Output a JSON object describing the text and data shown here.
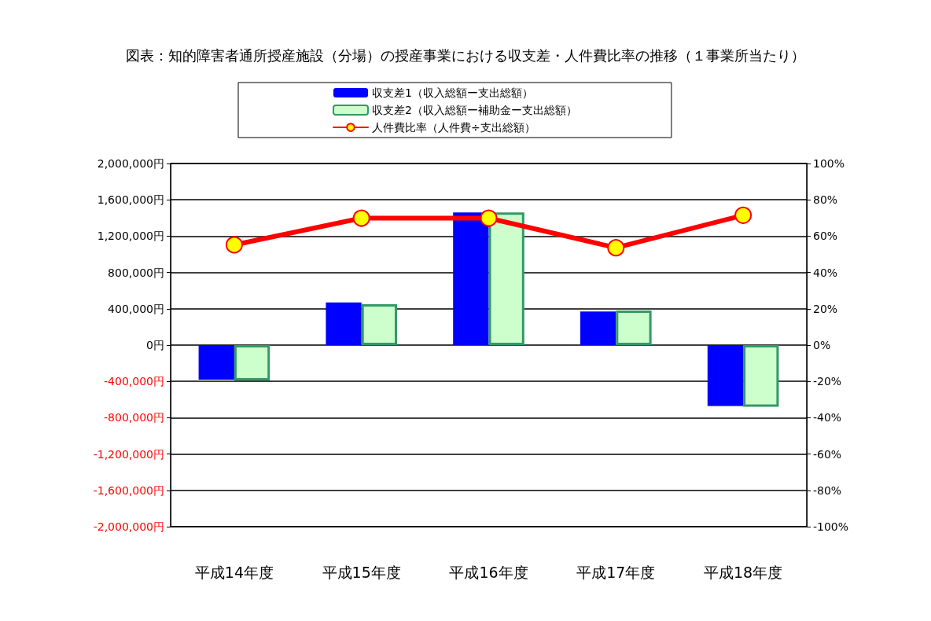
{
  "chart_data": {
    "type": "bar",
    "title": "図表：知的障害者通所授産施設（分場）の授産事業における収支差・人件費比率の推移（１事業所当たり）",
    "categories": [
      "平成14年度",
      "平成15年度",
      "平成16年度",
      "平成17年度",
      "平成18年度"
    ],
    "series": [
      {
        "name": "収支差1（収入総額ー支出総額）",
        "color": "#0000ff",
        "values": [
          -380000,
          470000,
          1460000,
          370000,
          -670000
        ]
      },
      {
        "name": "収支差2（収入総額ー補助金ー支出総額）",
        "color": "#ccffcc",
        "values": [
          -390000,
          450000,
          1460000,
          380000,
          -680000
        ]
      },
      {
        "name": "人件費比率（人件費÷支出総額）",
        "type": "line",
        "axis": "y2",
        "color": "#ff0000",
        "values": [
          55.2,
          69.9,
          69.9,
          53.6,
          71.5
        ]
      }
    ],
    "ylim": [
      -2000000,
      2000000
    ],
    "yticks": [
      {
        "value": -2000000,
        "label": "-2,000,000円"
      },
      {
        "value": -1600000,
        "label": "-1,600,000円"
      },
      {
        "value": -1200000,
        "label": "-1,200,000円"
      },
      {
        "value": -800000,
        "label": "-800,000円"
      },
      {
        "value": -400000,
        "label": "-400,000円"
      },
      {
        "value": 0,
        "label": "0円"
      },
      {
        "value": 400000,
        "label": "400,000円"
      },
      {
        "value": 800000,
        "label": "800,000円"
      },
      {
        "value": 1200000,
        "label": "1,200,000円"
      },
      {
        "value": 1600000,
        "label": "1,600,000円"
      },
      {
        "value": 2000000,
        "label": "2,000,000円"
      }
    ],
    "y2lim": [
      -100,
      100
    ],
    "y2ticks": [
      {
        "value": -100,
        "label": "-100%"
      },
      {
        "value": -80,
        "label": "-80%"
      },
      {
        "value": -60,
        "label": "-60%"
      },
      {
        "value": -40,
        "label": "-40%"
      },
      {
        "value": -20,
        "label": "-20%"
      },
      {
        "value": 0,
        "label": "0%"
      },
      {
        "value": 20,
        "label": "20%"
      },
      {
        "value": 40,
        "label": "40%"
      },
      {
        "value": 60,
        "label": "60%"
      },
      {
        "value": 80,
        "label": "80%"
      },
      {
        "value": 100,
        "label": "100%"
      }
    ],
    "grid": "y",
    "legend": "top",
    "marker": "circle",
    "line_style": "solid"
  }
}
